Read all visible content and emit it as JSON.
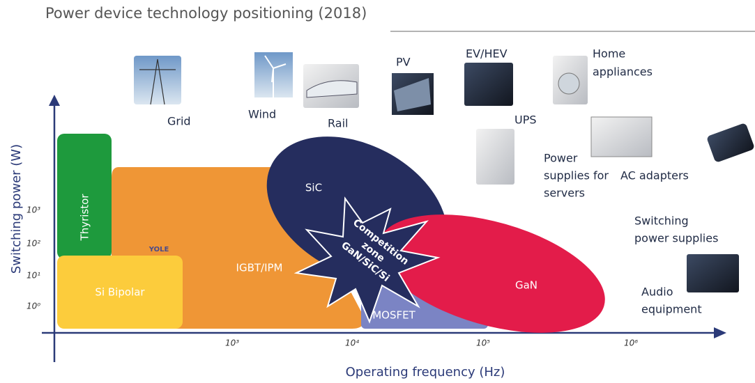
{
  "title": "Power device technology positioning (2018)",
  "axes": {
    "y_label": "Switching power (W)",
    "x_label": "Operating frequency (Hz)"
  },
  "y_ticks": [
    "10³",
    "10²",
    "10¹",
    "10⁰"
  ],
  "x_ticks": [
    "10³",
    "10⁴",
    "10⁵",
    "10⁶"
  ],
  "regions": [
    {
      "label": "Thyristor"
    },
    {
      "label": "IGBT/IPM"
    },
    {
      "label": "Si Bipolar"
    },
    {
      "label": "MOSFET"
    },
    {
      "label": "SiC"
    },
    {
      "label": "GaN"
    }
  ],
  "competition_zone": [
    "Competition",
    "zone",
    "GaN/SiC/Si"
  ],
  "logo": "YOLE",
  "applications": [
    [
      "Grid"
    ],
    [
      "Wind"
    ],
    [
      "Rail"
    ],
    [
      "PV"
    ],
    [
      "EV/HEV"
    ],
    [
      "Home",
      "appliances"
    ],
    [
      "UPS"
    ],
    [
      "Power",
      "supplies for",
      "servers"
    ],
    [
      "AC adapters"
    ],
    [
      "Switching",
      "power supplies"
    ],
    [
      "Audio",
      "equipment"
    ]
  ]
}
